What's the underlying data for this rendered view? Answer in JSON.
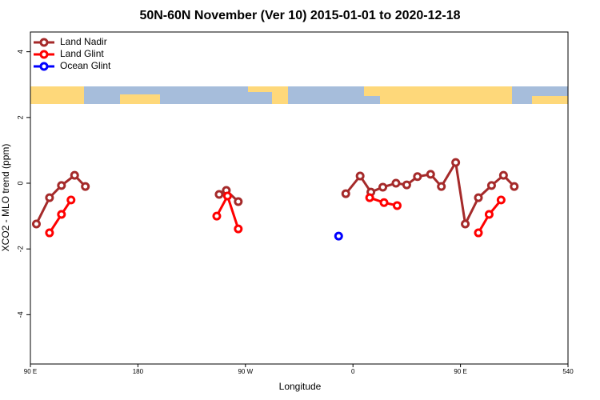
{
  "chart_data": {
    "type": "line",
    "title": "50N-60N November (Ver 10)   2015-01-01 to 2020-12-18",
    "xlabel": "Longitude",
    "ylabel": "XCO2 - MLO trend (ppm)",
    "xlim": [
      90,
      540
    ],
    "ylim": [
      -5.5,
      4.6
    ],
    "xticks": [
      {
        "value": 90,
        "label": "90 E"
      },
      180,
      {
        "value": 270,
        "label": "90 W"
      },
      {
        "value": 360,
        "label": "0"
      },
      {
        "value": 450,
        "label": "90 E"
      },
      540
    ],
    "yticks": [
      -4,
      -2,
      0,
      2,
      4
    ],
    "legend": "top-left",
    "series": [
      {
        "name": "Land Nadir",
        "color": "#a52a2a",
        "x": [
          95,
          106,
          116,
          127,
          136,
          null,
          248,
          254,
          264,
          null,
          354,
          366,
          375,
          385,
          396,
          405,
          414,
          425,
          434,
          446,
          454,
          465,
          476,
          486,
          495
        ],
        "values": [
          -1.24,
          -0.44,
          -0.07,
          0.24,
          -0.1,
          null,
          -0.34,
          -0.22,
          -0.56,
          null,
          -0.32,
          0.22,
          -0.27,
          -0.12,
          0,
          -0.05,
          0.2,
          0.27,
          -0.1,
          0.63,
          -1.24,
          -0.44,
          -0.07,
          0.24,
          -0.1
        ]
      },
      {
        "name": "Land Glint",
        "color": "#ff0000",
        "x": [
          106,
          116,
          124,
          null,
          246,
          255,
          264,
          null,
          374,
          386,
          397,
          null,
          465,
          474,
          484
        ],
        "values": [
          -1.51,
          -0.95,
          -0.51,
          null,
          -1.0,
          -0.39,
          -1.39,
          null,
          -0.44,
          -0.59,
          -0.68,
          null,
          -1.51,
          -0.95,
          -0.51
        ]
      },
      {
        "name": "Ocean Glint",
        "color": "#0000ff",
        "x": [
          348
        ],
        "values": [
          -1.61
        ]
      }
    ]
  }
}
